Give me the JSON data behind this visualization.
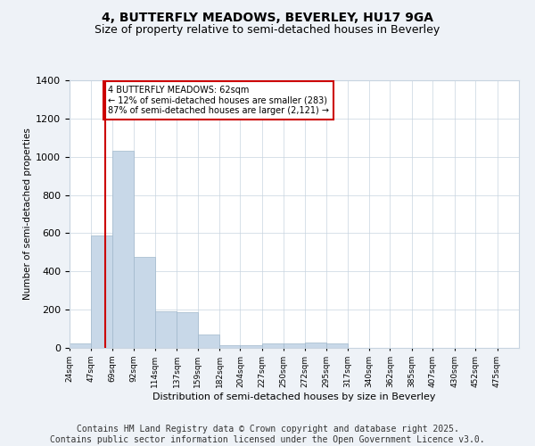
{
  "title_line1": "4, BUTTERFLY MEADOWS, BEVERLEY, HU17 9GA",
  "title_line2": "Size of property relative to semi-detached houses in Beverley",
  "xlabel": "Distribution of semi-detached houses by size in Beverley",
  "ylabel": "Number of semi-detached properties",
  "bin_labels": [
    "24sqm",
    "47sqm",
    "69sqm",
    "92sqm",
    "114sqm",
    "137sqm",
    "159sqm",
    "182sqm",
    "204sqm",
    "227sqm",
    "250sqm",
    "272sqm",
    "295sqm",
    "317sqm",
    "340sqm",
    "362sqm",
    "385sqm",
    "407sqm",
    "430sqm",
    "452sqm",
    "475sqm"
  ],
  "bin_edges": [
    24,
    47,
    69,
    92,
    114,
    137,
    159,
    182,
    204,
    227,
    250,
    272,
    295,
    317,
    340,
    362,
    385,
    407,
    430,
    452,
    475
  ],
  "bar_heights": [
    25,
    590,
    1030,
    475,
    190,
    185,
    70,
    15,
    15,
    25,
    25,
    30,
    25,
    0,
    0,
    0,
    0,
    0,
    0,
    0,
    0
  ],
  "bar_color": "#c8d8e8",
  "bar_edgecolor": "#a0b8cc",
  "property_size": 62,
  "vline_color": "#cc0000",
  "ylim": [
    0,
    1400
  ],
  "yticks": [
    0,
    200,
    400,
    600,
    800,
    1000,
    1200,
    1400
  ],
  "annotation_text": "4 BUTTERFLY MEADOWS: 62sqm\n← 12% of semi-detached houses are smaller (283)\n87% of semi-detached houses are larger (2,121) →",
  "annotation_box_color": "#ffffff",
  "annotation_box_edgecolor": "#cc0000",
  "footer_line1": "Contains HM Land Registry data © Crown copyright and database right 2025.",
  "footer_line2": "Contains public sector information licensed under the Open Government Licence v3.0.",
  "background_color": "#eef2f7",
  "plot_bg_color": "#ffffff",
  "grid_color": "#c8d4e0",
  "title_fontsize": 10,
  "subtitle_fontsize": 9,
  "footer_fontsize": 7
}
